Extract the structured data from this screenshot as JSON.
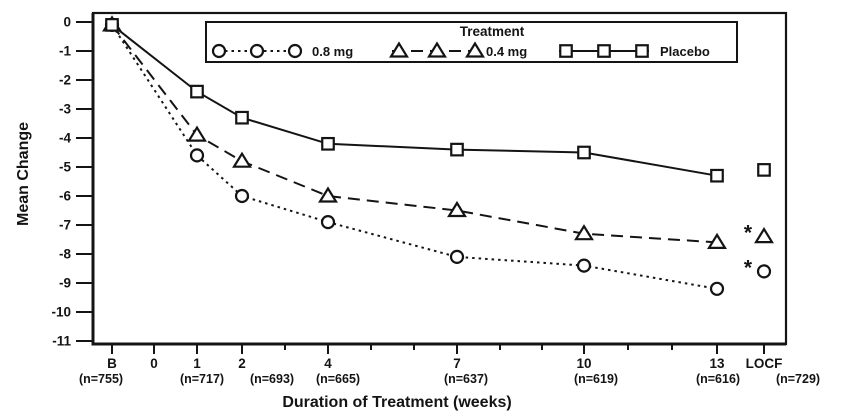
{
  "chart_data": {
    "type": "line",
    "title": "",
    "xlabel": "Duration of Treatment (weeks)",
    "ylabel": "Mean Change",
    "legend": {
      "title": "Treatment",
      "position": "top-inside"
    },
    "grid": false,
    "ylim": [
      -11.5,
      0.5
    ],
    "y_ticks": [
      0,
      -1,
      -2,
      -3,
      -4,
      -5,
      -6,
      -7,
      -8,
      -9,
      -10,
      -11
    ],
    "x_ticks": [
      {
        "week": -1,
        "label": "B",
        "n": "(n=755)"
      },
      {
        "week": 0,
        "label": "0",
        "n": ""
      },
      {
        "week": 1,
        "label": "1",
        "n": "(n=717)"
      },
      {
        "week": 2,
        "label": "2",
        "n": "(n=693)"
      },
      {
        "week": 4,
        "label": "4",
        "n": "(n=665)"
      },
      {
        "week": 7,
        "label": "7",
        "n": "(n=637)"
      },
      {
        "week": 10,
        "label": "10",
        "n": "(n=619)"
      },
      {
        "week": 13,
        "label": "13",
        "n": "(n=616)"
      },
      {
        "week": 14,
        "label": "LOCF",
        "n": "(n=729)"
      }
    ],
    "minor_tick_weeks": [
      3,
      5,
      6,
      8,
      9,
      11,
      12
    ],
    "significance_symbol": "*",
    "colors": {
      "ink": "#141414",
      "background": "#ffffff",
      "marker_fill": "#ffffff"
    },
    "series": [
      {
        "name": "0.8 mg",
        "marker": "circle",
        "line_style": "dotted",
        "points": [
          {
            "week": -1,
            "value": -0.1
          },
          {
            "week": 1,
            "value": -4.6
          },
          {
            "week": 2,
            "value": -6.0
          },
          {
            "week": 4,
            "value": -6.9
          },
          {
            "week": 7,
            "value": -8.1
          },
          {
            "week": 10,
            "value": -8.4
          },
          {
            "week": 13,
            "value": -9.2
          }
        ],
        "locf": {
          "week": 14,
          "value": -8.6,
          "significant": true
        }
      },
      {
        "name": "0.4 mg",
        "marker": "triangle",
        "line_style": "dashed",
        "points": [
          {
            "week": -1,
            "value": -0.1
          },
          {
            "week": 1,
            "value": -3.9
          },
          {
            "week": 2,
            "value": -4.8
          },
          {
            "week": 4,
            "value": -6.0
          },
          {
            "week": 7,
            "value": -6.5
          },
          {
            "week": 10,
            "value": -7.3
          },
          {
            "week": 13,
            "value": -7.6
          }
        ],
        "locf": {
          "week": 14,
          "value": -7.4,
          "significant": true
        }
      },
      {
        "name": "Placebo",
        "marker": "square",
        "line_style": "solid",
        "points": [
          {
            "week": -1,
            "value": -0.1
          },
          {
            "week": 1,
            "value": -2.4
          },
          {
            "week": 2,
            "value": -3.3
          },
          {
            "week": 4,
            "value": -4.2
          },
          {
            "week": 7,
            "value": -4.4
          },
          {
            "week": 10,
            "value": -4.5
          },
          {
            "week": 13,
            "value": -5.3
          }
        ],
        "locf": {
          "week": 14,
          "value": -5.1,
          "significant": false
        }
      }
    ]
  }
}
